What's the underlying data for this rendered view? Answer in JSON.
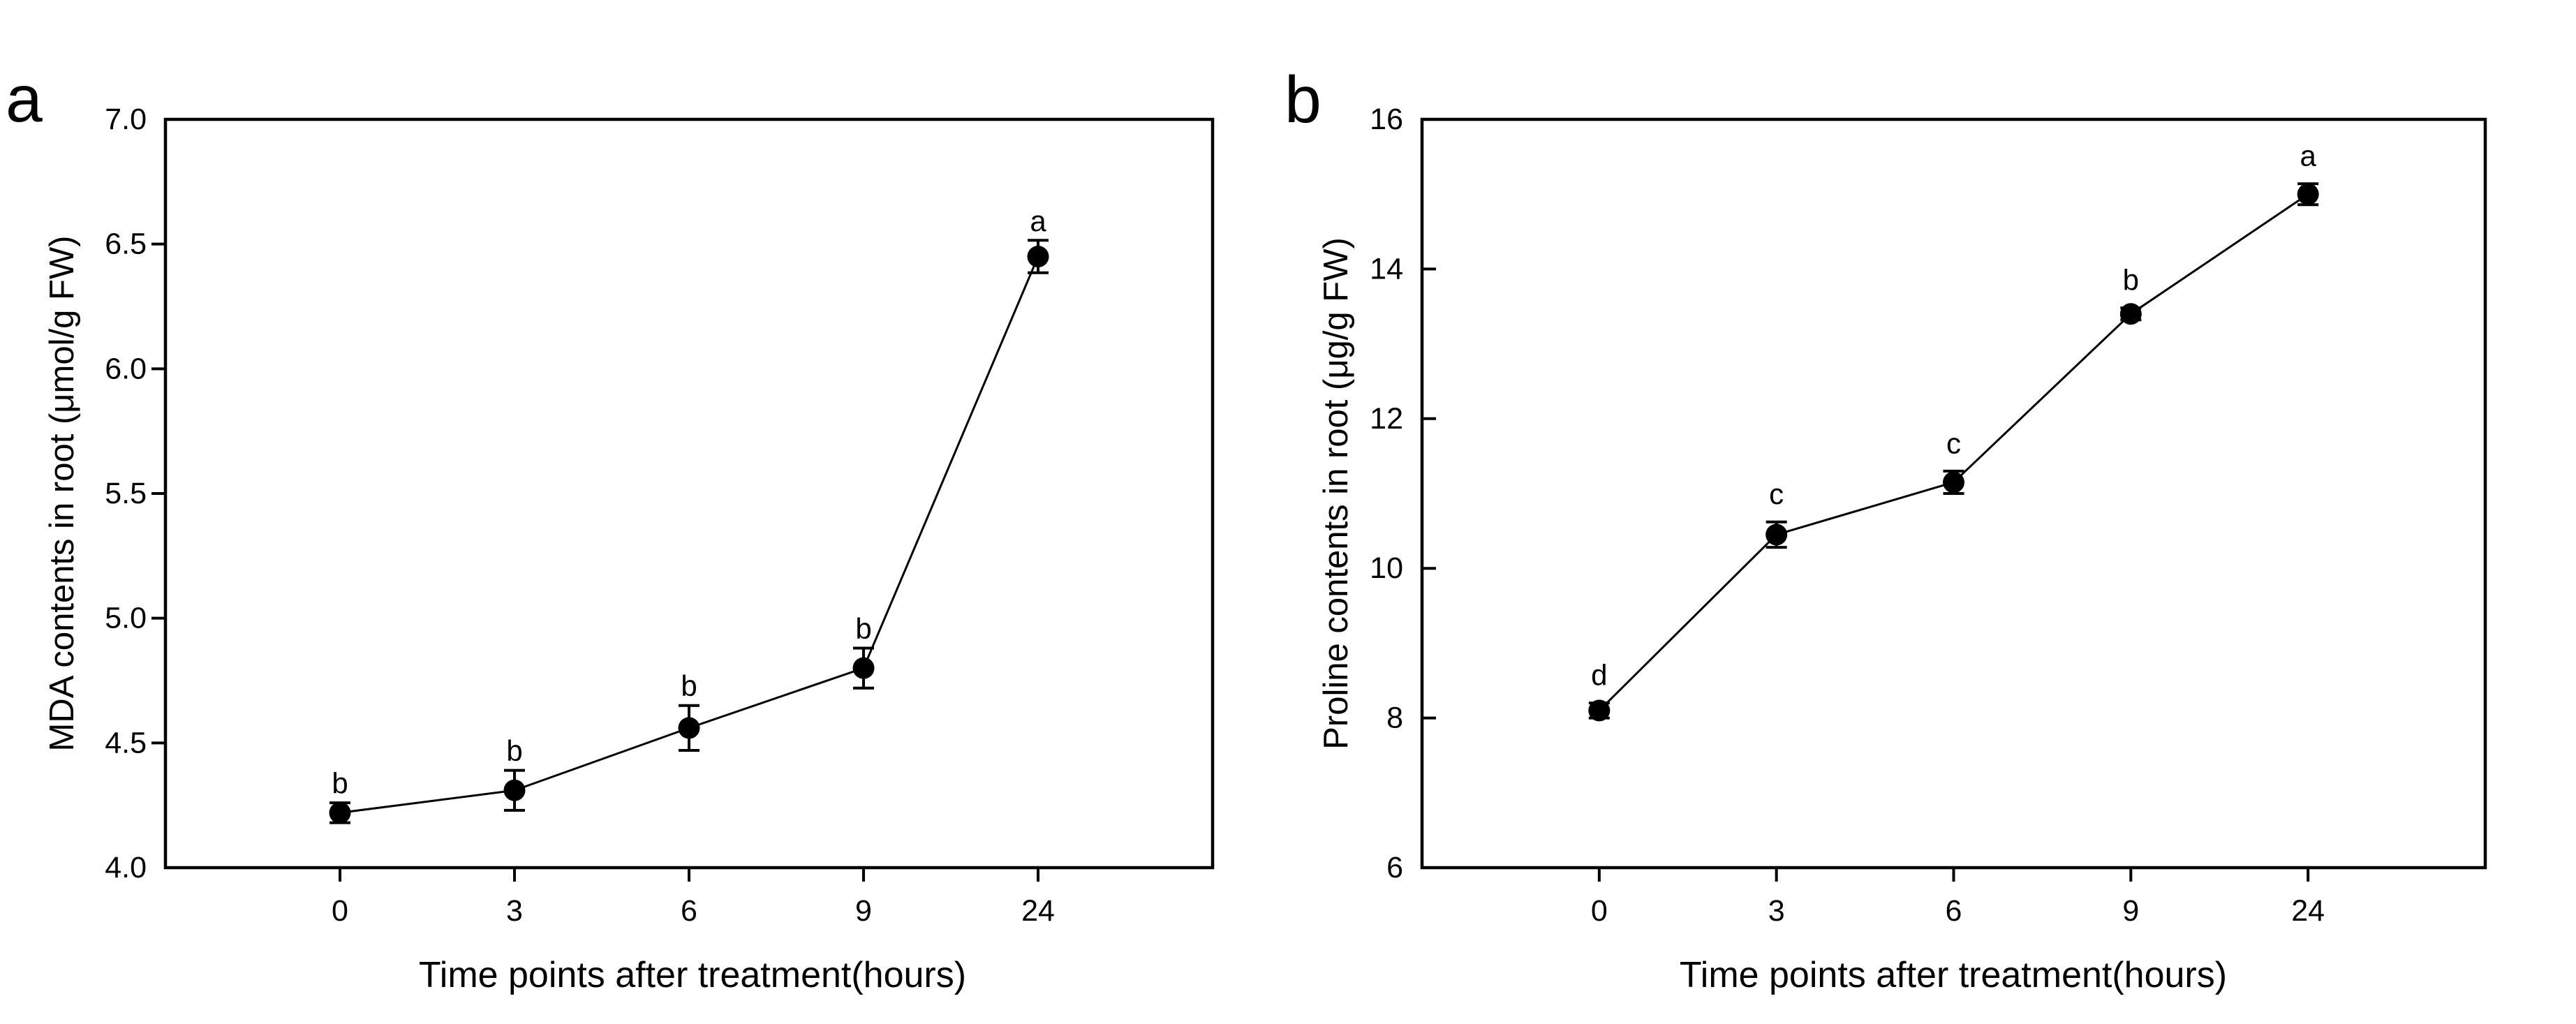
{
  "figure": {
    "background": "#ffffff",
    "ink_color": "#000000",
    "panels_count": 2
  },
  "chart_data": [
    {
      "type": "line",
      "panel_label": "a",
      "title": "",
      "x_categories": [
        "0",
        "3",
        "6",
        "9",
        "24"
      ],
      "xlabel": "Time points after treatment(hours)",
      "ylabel": "MDA contents in root (μmol/g FW)",
      "ylim": [
        4.0,
        7.0
      ],
      "yticks": [
        7.0,
        6.5,
        6.0,
        5.5,
        5.0,
        4.5,
        4.0
      ],
      "ytick_labels": [
        "7.0",
        "6.5",
        "6.0",
        "5.5",
        "5.0",
        "4.5",
        "4.0"
      ],
      "grid": false,
      "legend": "none",
      "marker": "filled-circle",
      "line_color": "#000000",
      "series": [
        {
          "name": "MDA content",
          "values": [
            4.22,
            4.31,
            4.56,
            4.8,
            6.45
          ],
          "errors": [
            0.04,
            0.08,
            0.09,
            0.08,
            0.065
          ],
          "sig_letters": [
            "b",
            "b",
            "b",
            "b",
            "a"
          ]
        }
      ]
    },
    {
      "type": "line",
      "panel_label": "b",
      "title": "",
      "x_categories": [
        "0",
        "3",
        "6",
        "9",
        "24"
      ],
      "xlabel": "Time points after treatment(hours)",
      "ylabel": "Proline contents in root (μg/g FW)",
      "ylim": [
        6,
        16
      ],
      "yticks": [
        16,
        14,
        12,
        10,
        8,
        6
      ],
      "ytick_labels": [
        "16",
        "14",
        "12",
        "10",
        "8",
        "6"
      ],
      "grid": false,
      "legend": "none",
      "marker": "filled-circle",
      "line_color": "#000000",
      "series": [
        {
          "name": "Proline content",
          "values": [
            8.1,
            10.45,
            11.15,
            13.4,
            15.0
          ],
          "errors": [
            0.1,
            0.17,
            0.15,
            0.08,
            0.14
          ],
          "sig_letters": [
            "d",
            "c",
            "c",
            "b",
            "a"
          ]
        }
      ]
    }
  ]
}
